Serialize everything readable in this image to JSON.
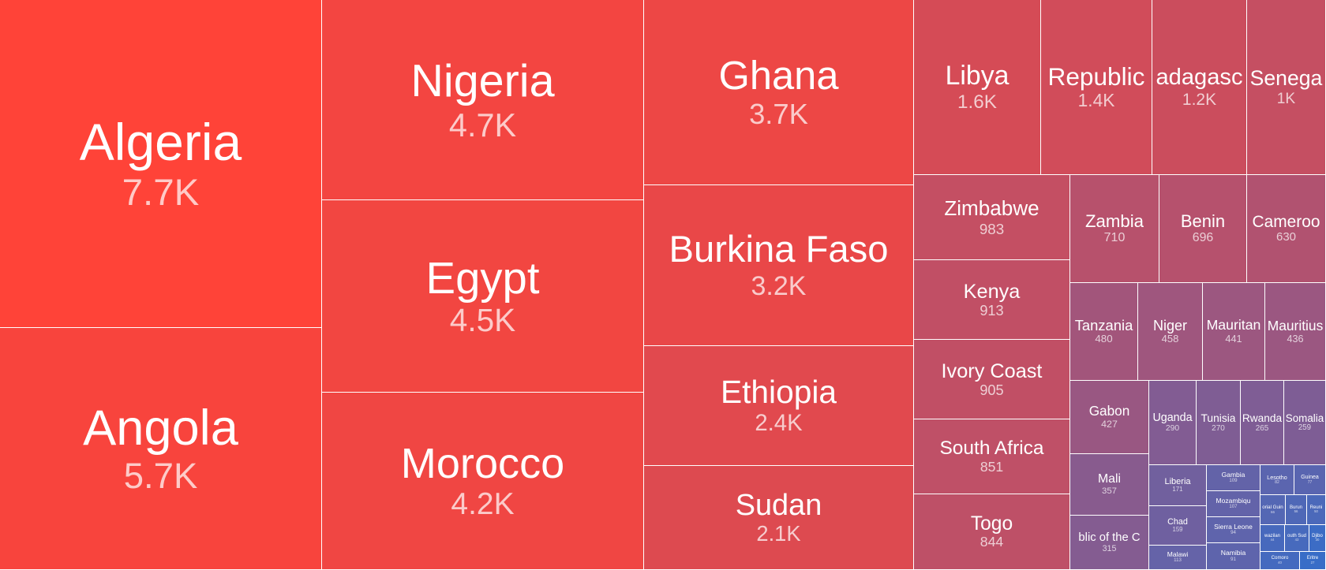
{
  "chart_data": {
    "type": "treemap",
    "value_format": "compact",
    "color_scale": {
      "high": "#ff4338",
      "mid": "#8b5a8c",
      "low": "#2f6fce"
    },
    "items": [
      {
        "name": "Algeria",
        "label": "7.7K",
        "value": 7700
      },
      {
        "name": "Angola",
        "label": "5.7K",
        "value": 5700
      },
      {
        "name": "Nigeria",
        "label": "4.7K",
        "value": 4700
      },
      {
        "name": "Egypt",
        "label": "4.5K",
        "value": 4500
      },
      {
        "name": "Morocco",
        "label": "4.2K",
        "value": 4200
      },
      {
        "name": "Ghana",
        "label": "3.7K",
        "value": 3700
      },
      {
        "name": "Burkina Faso",
        "label": "3.2K",
        "value": 3200
      },
      {
        "name": "Ethiopia",
        "label": "2.4K",
        "value": 2400
      },
      {
        "name": "Sudan",
        "label": "2.1K",
        "value": 2100
      },
      {
        "name": "Libya",
        "label": "1.6K",
        "value": 1600
      },
      {
        "name": "Republic",
        "label": "1.4K",
        "value": 1400
      },
      {
        "name": "adagasc",
        "label": "1.2K",
        "value": 1200
      },
      {
        "name": "Senega",
        "label": "1K",
        "value": 1000
      },
      {
        "name": "Zimbabwe",
        "label": "983",
        "value": 983
      },
      {
        "name": "Kenya",
        "label": "913",
        "value": 913
      },
      {
        "name": "Ivory Coast",
        "label": "905",
        "value": 905
      },
      {
        "name": "South Africa",
        "label": "851",
        "value": 851
      },
      {
        "name": "Togo",
        "label": "844",
        "value": 844
      },
      {
        "name": "Zambia",
        "label": "710",
        "value": 710
      },
      {
        "name": "Benin",
        "label": "696",
        "value": 696
      },
      {
        "name": "Cameroo",
        "label": "630",
        "value": 630
      },
      {
        "name": "Tanzania",
        "label": "480",
        "value": 480
      },
      {
        "name": "Niger",
        "label": "458",
        "value": 458
      },
      {
        "name": "Mauritan",
        "label": "441",
        "value": 441
      },
      {
        "name": "Mauritius",
        "label": "436",
        "value": 436
      },
      {
        "name": "Gabon",
        "label": "427",
        "value": 427
      },
      {
        "name": "Mali",
        "label": "357",
        "value": 357
      },
      {
        "name": "blic of the C",
        "label": "315",
        "value": 315
      },
      {
        "name": "Uganda",
        "label": "290",
        "value": 290
      },
      {
        "name": "Tunisia",
        "label": "270",
        "value": 270
      },
      {
        "name": "Rwanda",
        "label": "265",
        "value": 265
      },
      {
        "name": "Somalia",
        "label": "259",
        "value": 259
      },
      {
        "name": "Liberia",
        "label": "171",
        "value": 171
      },
      {
        "name": "Chad",
        "label": "159",
        "value": 159
      },
      {
        "name": "Malawi",
        "label": "113",
        "value": 113
      },
      {
        "name": "Gambia",
        "label": "109",
        "value": 109
      },
      {
        "name": "Mozambiqu",
        "label": "107",
        "value": 107
      },
      {
        "name": "Sierra Leone",
        "label": "94",
        "value": 94
      },
      {
        "name": "Namibia",
        "label": "91",
        "value": 91
      },
      {
        "name": "Lesotho",
        "label": "82",
        "value": 82
      },
      {
        "name": "Guinea",
        "label": "77",
        "value": 77
      },
      {
        "name": "orial Guin",
        "label": "66",
        "value": 66
      },
      {
        "name": "Burun",
        "label": "56",
        "value": 56
      },
      {
        "name": "Reuni",
        "label": "50",
        "value": 50
      },
      {
        "name": "wazilan",
        "label": "44",
        "value": 44
      },
      {
        "name": "outh Sud",
        "label": "43",
        "value": 43
      },
      {
        "name": "Comoro",
        "label": "40",
        "value": 40
      },
      {
        "name": "ape Verd",
        "label": "35",
        "value": 35
      },
      {
        "name": "al African R",
        "label": "33",
        "value": 33
      },
      {
        "name": "Djibo",
        "label": "30",
        "value": 30
      },
      {
        "name": "Eritre",
        "label": "27",
        "value": 27
      },
      {
        "name": "Saint",
        "label": "24",
        "value": 24
      },
      {
        "name": "Seych",
        "label": "21",
        "value": 21
      }
    ]
  }
}
